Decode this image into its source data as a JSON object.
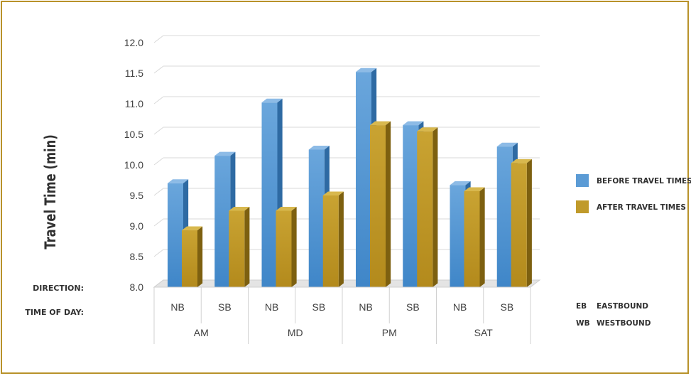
{
  "chart_data": {
    "type": "bar",
    "ylabel": "Travel Time (min)",
    "ylim": [
      8.0,
      12.0
    ],
    "yticks": [
      "8.0",
      "8.5",
      "9.0",
      "9.5",
      "10.0",
      "10.5",
      "11.0",
      "11.5",
      "12.0"
    ],
    "categories": [
      "NB",
      "SB",
      "NB",
      "SB",
      "NB",
      "SB",
      "NB",
      "SB"
    ],
    "groups": [
      "AM",
      "MD",
      "PM",
      "SAT"
    ],
    "row_labels": {
      "direction": "DIRECTION:",
      "time_of_day": "TIME OF DAY:"
    },
    "series": [
      {
        "name": "BEFORE TRAVEL TIMES",
        "color": "#5b9bd5",
        "values": [
          9.7,
          10.15,
          11.02,
          10.25,
          11.52,
          10.65,
          9.67,
          10.3
        ]
      },
      {
        "name": "AFTER TRAVEL TIMES",
        "color": "#c09a2a",
        "values": [
          8.93,
          9.25,
          9.25,
          9.5,
          10.65,
          10.55,
          9.57,
          10.03
        ]
      }
    ],
    "legend_position": "right",
    "grid": true,
    "abbreviations": [
      {
        "code": "EB",
        "meaning": "EASTBOUND"
      },
      {
        "code": "WB",
        "meaning": "WESTBOUND"
      }
    ]
  }
}
